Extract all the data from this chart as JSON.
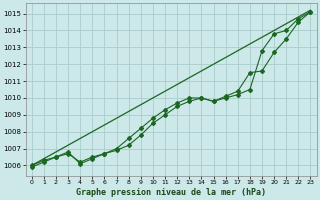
{
  "xlabel": "Graphe pression niveau de la mer (hPa)",
  "xlim": [
    -0.5,
    23.5
  ],
  "ylim": [
    1005.4,
    1015.6
  ],
  "yticks": [
    1006,
    1007,
    1008,
    1009,
    1010,
    1011,
    1012,
    1013,
    1014,
    1015
  ],
  "xticks": [
    0,
    1,
    2,
    3,
    4,
    5,
    6,
    7,
    8,
    9,
    10,
    11,
    12,
    13,
    14,
    15,
    16,
    17,
    18,
    19,
    20,
    21,
    22,
    23
  ],
  "bg_color": "#cce8e8",
  "grid_color": "#aacccc",
  "line_color": "#1a6622",
  "series1_x": [
    0,
    1,
    2,
    3,
    4,
    5,
    6,
    7,
    8,
    9,
    10,
    11,
    12,
    13,
    14,
    15,
    16,
    17,
    18,
    19,
    20,
    21,
    22,
    23
  ],
  "series1_y": [
    1006.0,
    1006.3,
    1006.5,
    1006.7,
    1006.2,
    1006.5,
    1006.7,
    1006.9,
    1007.2,
    1007.8,
    1008.5,
    1009.0,
    1009.5,
    1009.8,
    1010.0,
    1009.8,
    1010.0,
    1010.2,
    1010.5,
    1012.8,
    1013.8,
    1014.0,
    1014.7,
    1015.1
  ],
  "series2_x": [
    0,
    1,
    2,
    3,
    4,
    5,
    6,
    7,
    8,
    9,
    10,
    11,
    12,
    13,
    14,
    15,
    16,
    17,
    18,
    19,
    20,
    21,
    22,
    23
  ],
  "series2_y": [
    1005.9,
    1006.2,
    1006.5,
    1006.8,
    1006.1,
    1006.4,
    1006.7,
    1007.0,
    1007.6,
    1008.2,
    1008.8,
    1009.3,
    1009.7,
    1010.0,
    1010.0,
    1009.8,
    1010.1,
    1010.4,
    1011.5,
    1011.6,
    1012.7,
    1013.5,
    1014.5,
    1015.1
  ],
  "series3_x": [
    0,
    23
  ],
  "series3_y": [
    1006.0,
    1015.2
  ]
}
